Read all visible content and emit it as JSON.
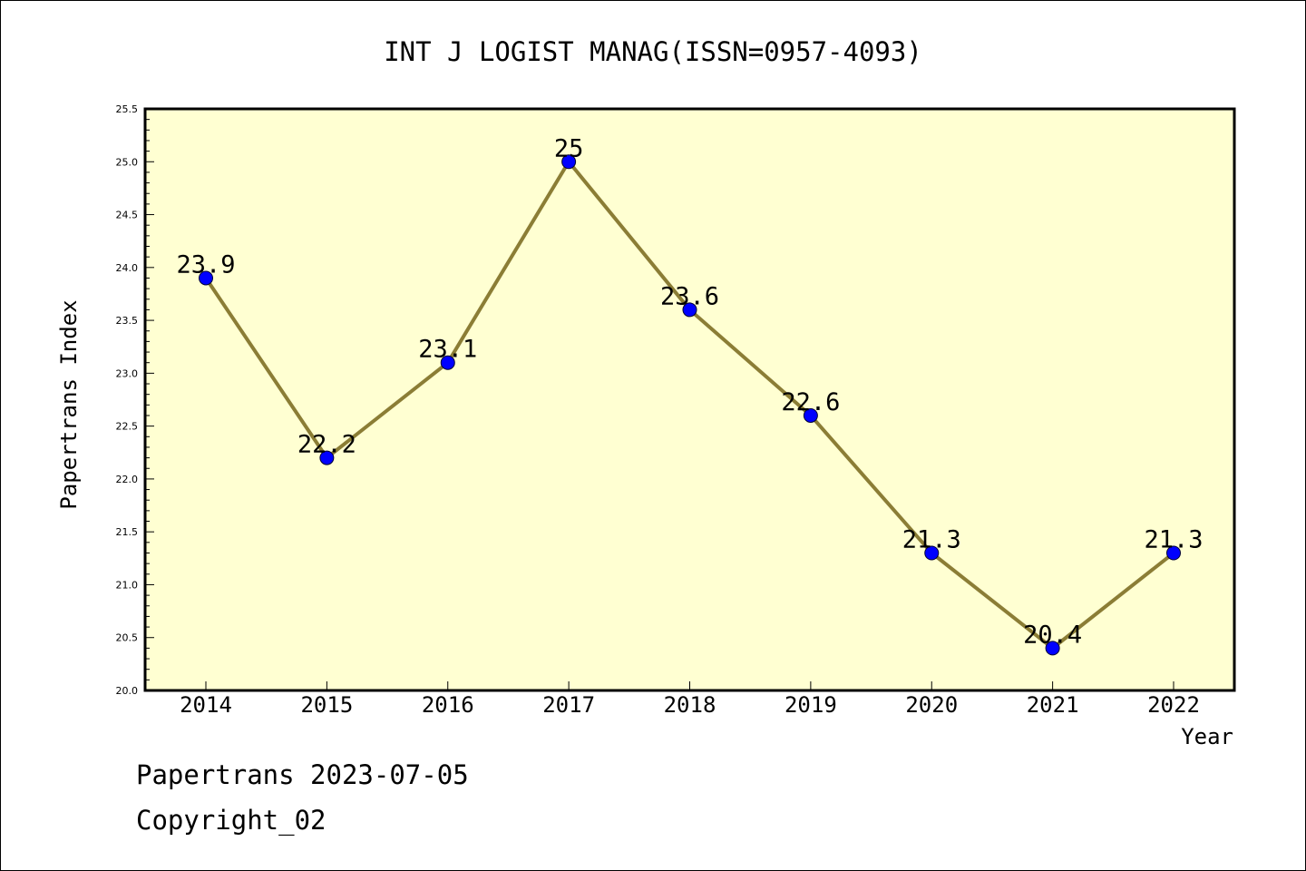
{
  "chart_data": {
    "type": "line",
    "title": "INT J LOGIST MANAG(ISSN=0957-4093)",
    "xlabel": "Year",
    "ylabel": "Papertrans Index",
    "categories": [
      "2014",
      "2015",
      "2016",
      "2017",
      "2018",
      "2019",
      "2020",
      "2021",
      "2022"
    ],
    "series": [
      {
        "values": [
          23.9,
          22.2,
          23.1,
          25,
          23.6,
          22.6,
          21.3,
          20.4,
          21.3
        ],
        "labels": [
          "23.9",
          "22.2",
          "23.1",
          "25",
          "23.6",
          "22.6",
          "21.3",
          "20.4",
          "21.3"
        ]
      }
    ],
    "ylim": [
      20.0,
      25.5
    ],
    "yticks": [
      "20.0",
      "20.5",
      "21.0",
      "21.5",
      "22.0",
      "22.5",
      "23.0",
      "23.5",
      "24.0",
      "24.5",
      "25.0",
      "25.5"
    ],
    "grid": false,
    "colors": {
      "plot_background": "#ffffd2",
      "line": "#8b7d35",
      "marker": "#0000ff"
    }
  },
  "footer": {
    "date_line": "Papertrans 2023-07-05",
    "copyright": "Copyright_02"
  }
}
